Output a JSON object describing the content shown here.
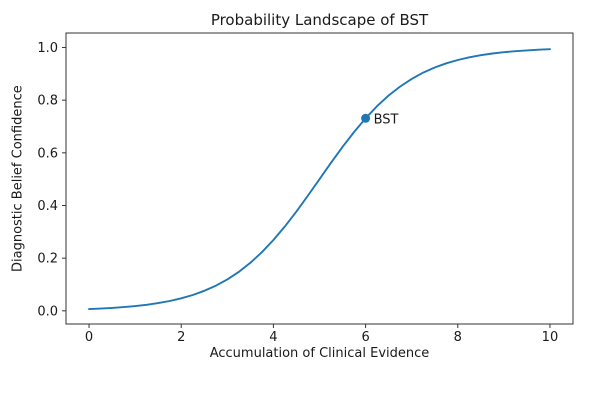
{
  "chart_data": {
    "type": "line",
    "title": "Probability Landscape of BST",
    "xlabel": "Accumulation of Clinical Evidence",
    "ylabel": "Diagnostic Belief Confidence",
    "xlim": [
      -0.5,
      10.5
    ],
    "ylim": [
      -0.05,
      1.055
    ],
    "grid": false,
    "legend": "none",
    "axis_color": "#333333",
    "text_color": "#1a1a1a",
    "xtick_values": [
      0,
      2,
      4,
      6,
      8,
      10
    ],
    "xtick_labels": [
      "0",
      "2",
      "4",
      "6",
      "8",
      "10"
    ],
    "ytick_values": [
      0.0,
      0.2,
      0.4,
      0.6,
      0.8,
      1.0
    ],
    "ytick_labels": [
      "0.0",
      "0.2",
      "0.4",
      "0.6",
      "0.8",
      "1.0"
    ],
    "series": [
      {
        "name": "diagnostic-belief-sigmoid",
        "color": "#1f77b4",
        "x": [
          0,
          0.25,
          0.5,
          0.75,
          1,
          1.25,
          1.5,
          1.75,
          2,
          2.25,
          2.5,
          2.75,
          3,
          3.25,
          3.5,
          3.75,
          4,
          4.25,
          4.5,
          4.75,
          5,
          5.25,
          5.5,
          5.75,
          6,
          6.25,
          6.5,
          6.75,
          7,
          7.25,
          7.5,
          7.75,
          8,
          8.25,
          8.5,
          8.75,
          9,
          9.25,
          9.5,
          9.75,
          10
        ],
        "y": [
          0.0067,
          0.0086,
          0.011,
          0.0141,
          0.018,
          0.023,
          0.0293,
          0.0373,
          0.0474,
          0.0601,
          0.0759,
          0.0953,
          0.1192,
          0.148,
          0.1824,
          0.2227,
          0.2689,
          0.3208,
          0.3775,
          0.4378,
          0.5,
          0.5622,
          0.6225,
          0.6792,
          0.7311,
          0.7773,
          0.8176,
          0.852,
          0.8808,
          0.9047,
          0.9241,
          0.9399,
          0.9526,
          0.9627,
          0.9707,
          0.977,
          0.982,
          0.9859,
          0.989,
          0.9914,
          0.9933
        ]
      }
    ],
    "annotation": {
      "label": "BST",
      "x": 6,
      "y": 0.7311,
      "marker_color": "#1f77b4",
      "text_color": "#1a1a1a"
    }
  }
}
